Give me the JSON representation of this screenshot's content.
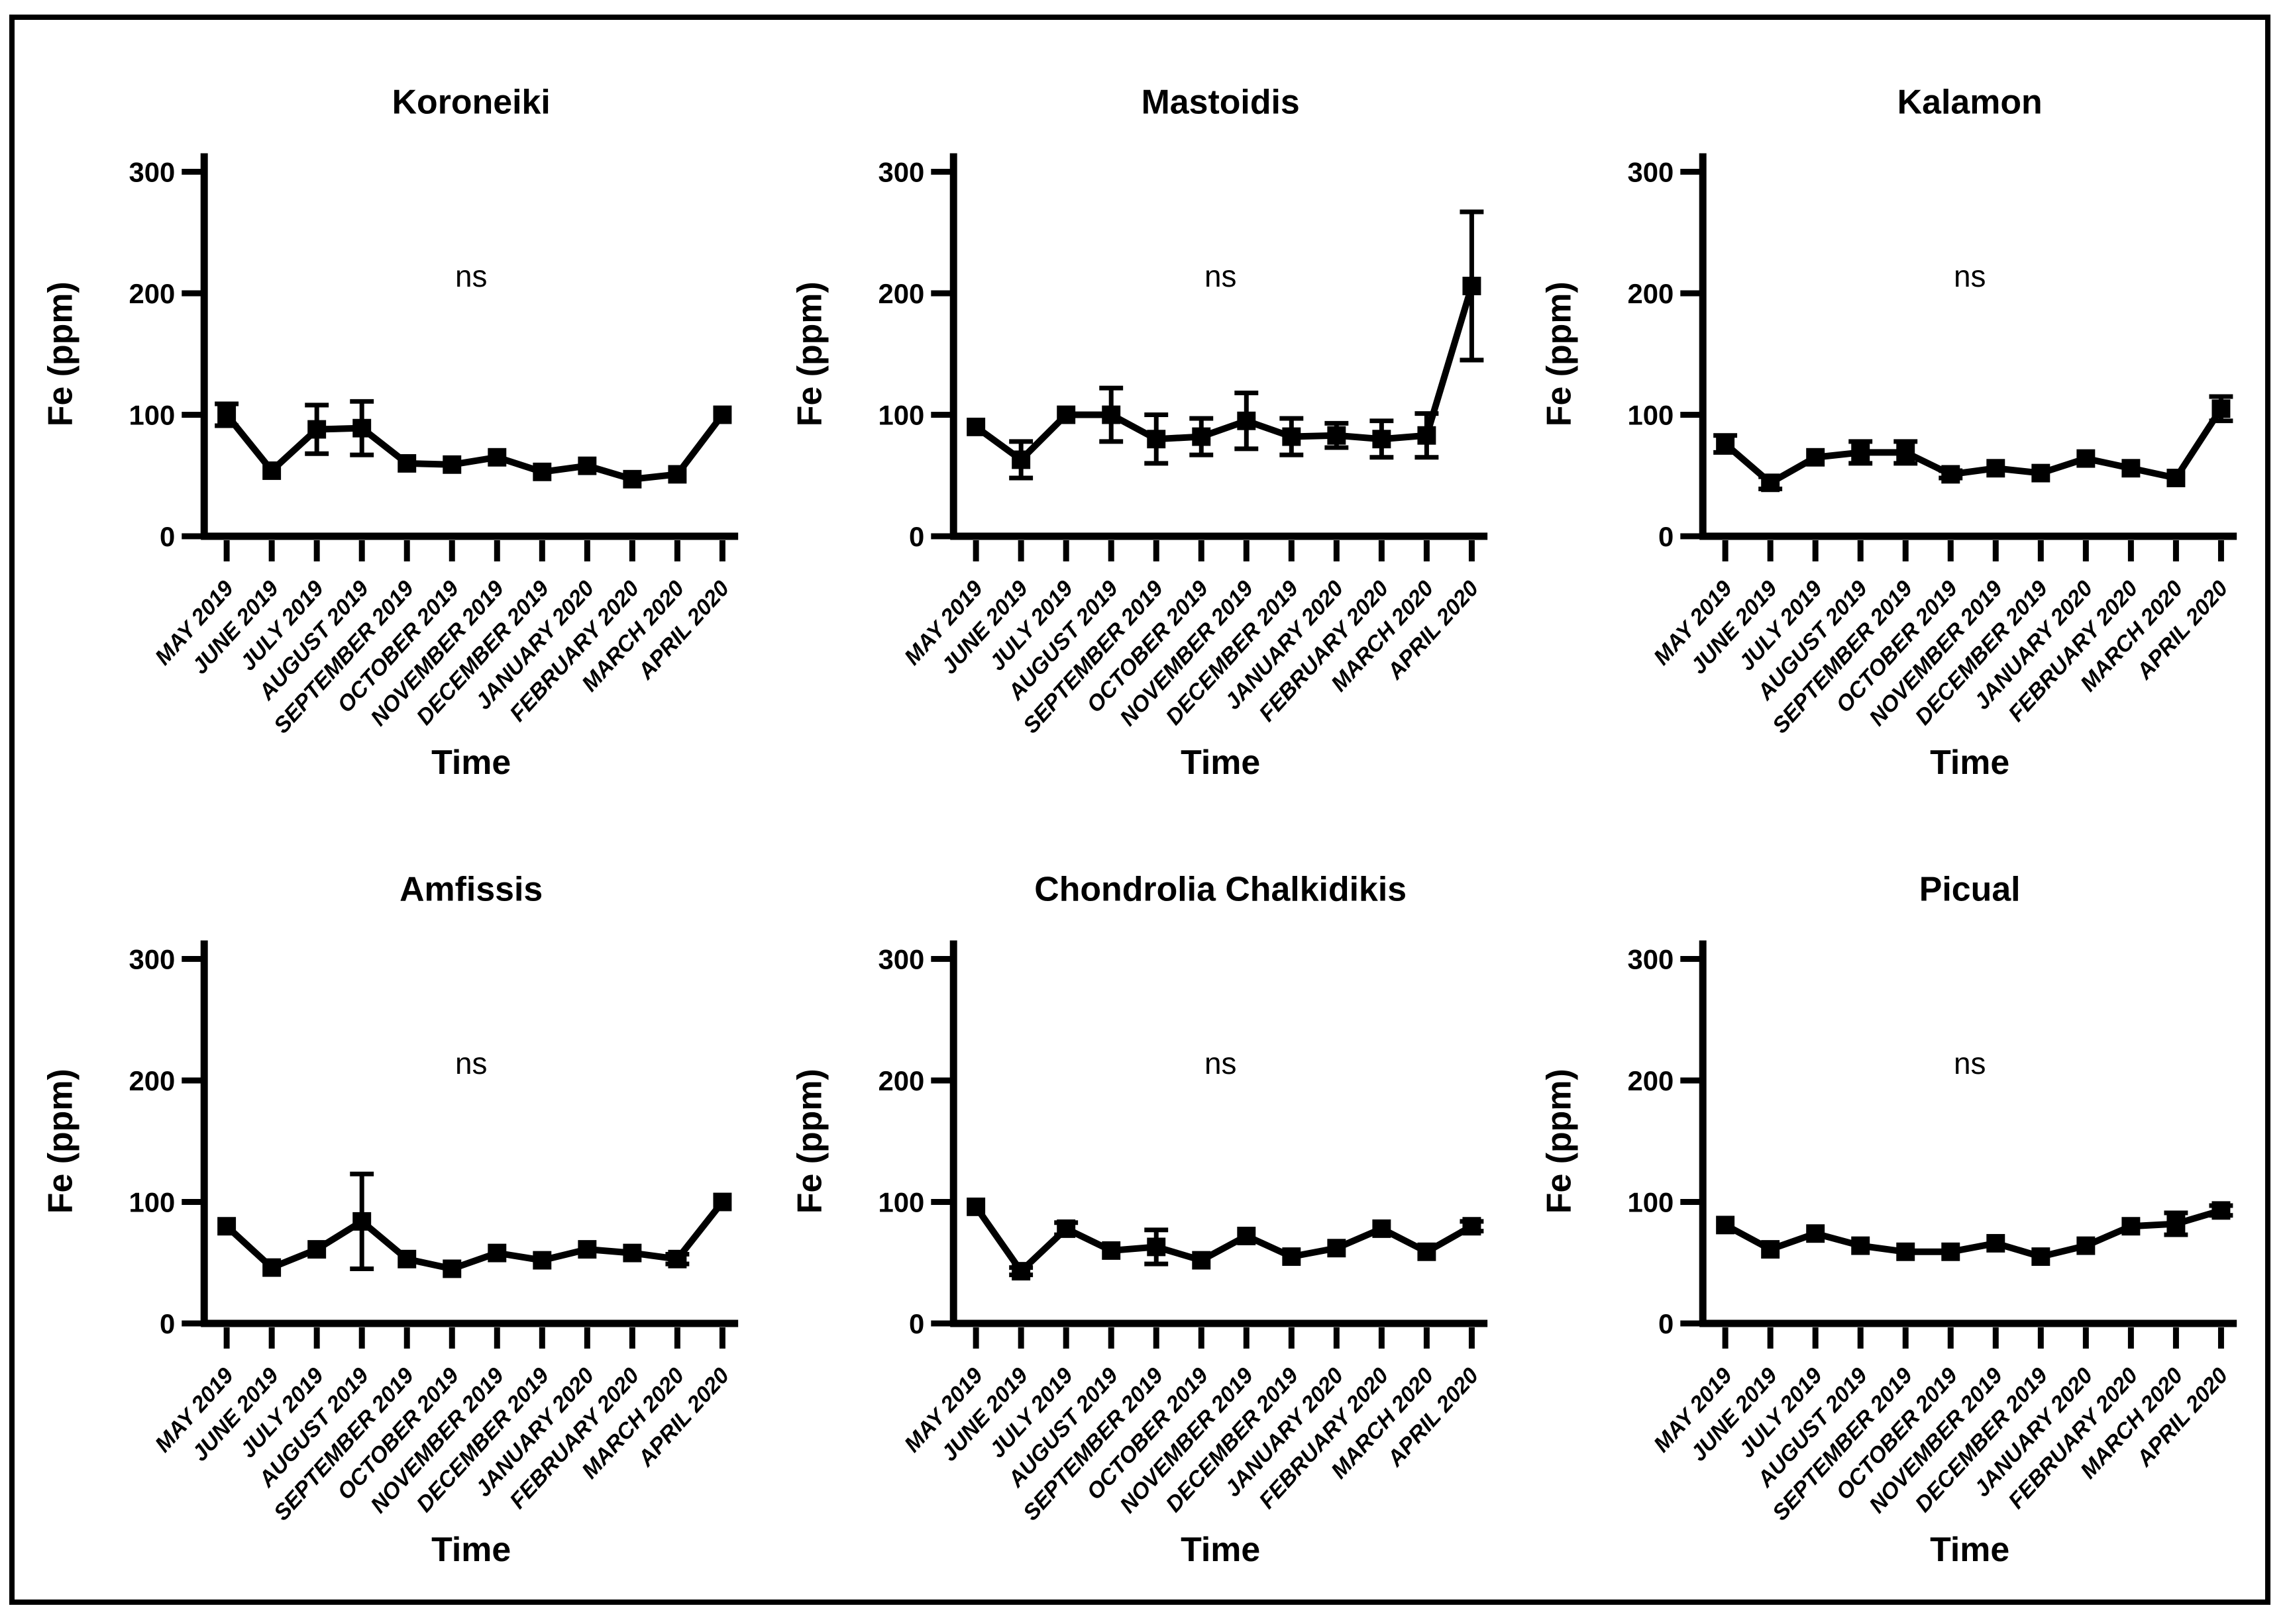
{
  "chart_data": {
    "type": "line",
    "figure_kind": "small-multiples",
    "categories": [
      "MAY 2019",
      "JUNE 2019",
      "JULY 2019",
      "AUGUST 2019",
      "SEPTEMBER 2019",
      "OCTOBER 2019",
      "NOVEMBER 2019",
      "DECEMBER 2019",
      "JANUARY 2020",
      "FEBRUARY 2020",
      "MARCH 2020",
      "APRIL 2020"
    ],
    "xlabel": "Time",
    "ylabel": "Fe (ppm)",
    "ylim": [
      0,
      300
    ],
    "yticks": [
      0,
      100,
      200,
      300
    ],
    "annotation": "ns",
    "grid": false,
    "legend": "none",
    "marker": "square",
    "line_color": "#000000",
    "axis_color": "#000000",
    "background_color": "#ffffff",
    "border_color": "#000000",
    "panels": [
      {
        "title": "Koroneiki",
        "values": [
          100,
          54,
          88,
          89,
          60,
          59,
          65,
          53,
          58,
          47,
          51,
          100
        ],
        "errors": [
          9,
          0,
          20,
          22,
          0,
          0,
          0,
          0,
          0,
          0,
          0,
          0
        ]
      },
      {
        "title": "Mastoidis",
        "values": [
          90,
          63,
          100,
          100,
          80,
          82,
          95,
          82,
          83,
          80,
          83,
          206
        ],
        "errors": [
          0,
          15,
          0,
          22,
          20,
          15,
          23,
          15,
          10,
          15,
          18,
          61
        ]
      },
      {
        "title": "Kalamon",
        "values": [
          76,
          44,
          65,
          69,
          69,
          51,
          56,
          52,
          64,
          56,
          48,
          105
        ],
        "errors": [
          7,
          5,
          0,
          9,
          9,
          3,
          0,
          0,
          0,
          0,
          0,
          10
        ]
      },
      {
        "title": "Amfissis",
        "values": [
          80,
          46,
          61,
          84,
          53,
          45,
          58,
          52,
          61,
          58,
          53,
          100
        ],
        "errors": [
          0,
          0,
          0,
          39,
          0,
          0,
          0,
          0,
          0,
          0,
          4,
          0
        ]
      },
      {
        "title": "Chondrolia Chalkidikis",
        "values": [
          96,
          43,
          78,
          60,
          63,
          52,
          72,
          55,
          62,
          78,
          59,
          80
        ],
        "errors": [
          0,
          3,
          5,
          0,
          14,
          0,
          0,
          0,
          0,
          0,
          0,
          4
        ]
      },
      {
        "title": "Picual",
        "values": [
          81,
          61,
          74,
          64,
          59,
          59,
          66,
          55,
          64,
          80,
          82,
          93
        ],
        "errors": [
          0,
          0,
          0,
          0,
          0,
          0,
          0,
          0,
          0,
          0,
          9,
          4
        ]
      }
    ]
  }
}
